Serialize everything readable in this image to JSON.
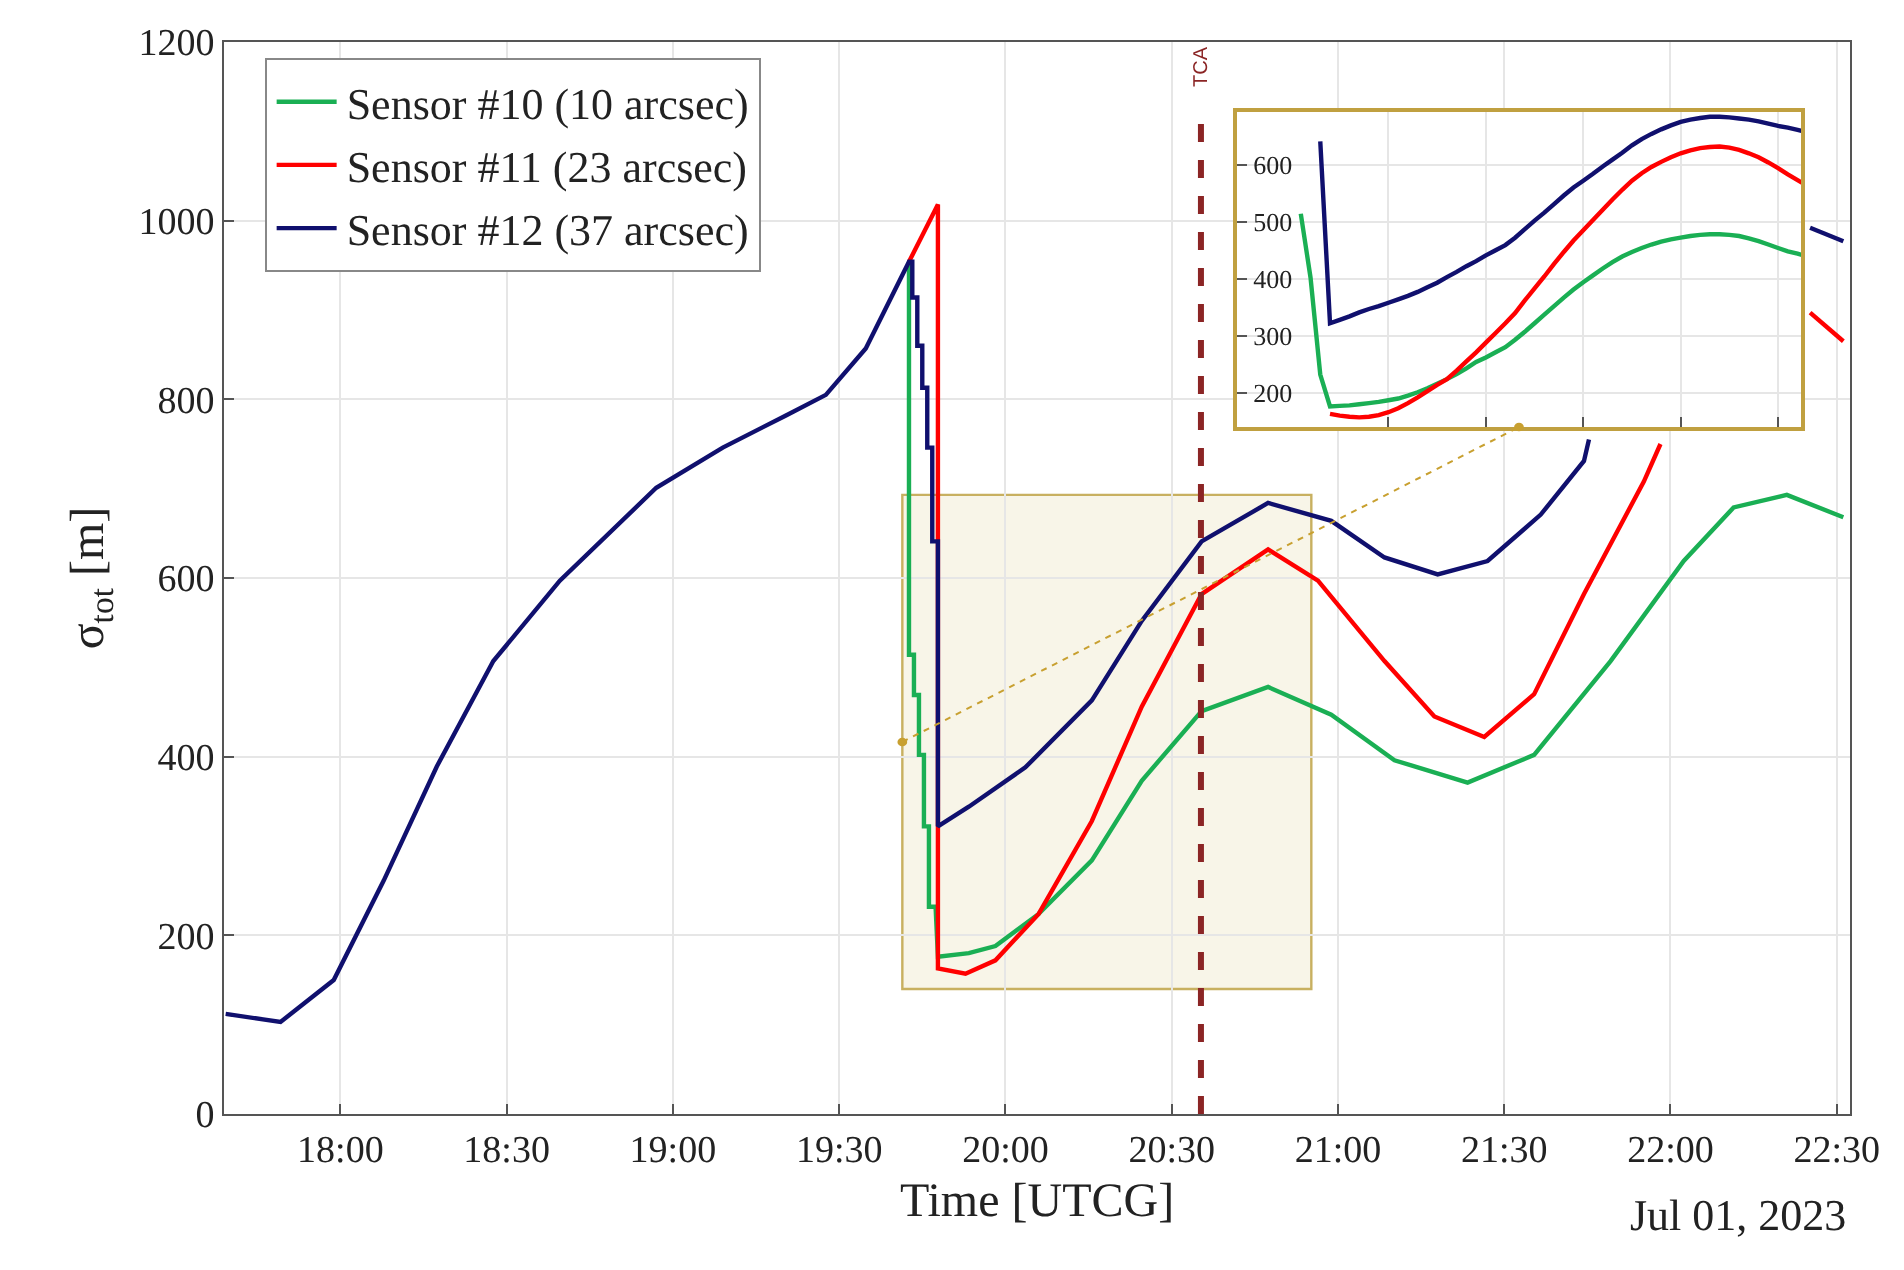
{
  "chart_data": [
    {
      "type": "line",
      "xlabel": "Time [UTCG]",
      "ylabel": "σ$_{tot}$ [m]",
      "xlim": [
        17.65,
        22.54
      ],
      "ylim": [
        0,
        1200
      ],
      "xticks": [
        {
          "value": 18,
          "label": "18:00"
        },
        {
          "value": 18.5,
          "label": "18:30"
        },
        {
          "value": 19,
          "label": "19:00"
        },
        {
          "value": 19.5,
          "label": "19:30"
        },
        {
          "value": 20,
          "label": "20:00"
        },
        {
          "value": 20.5,
          "label": "20:30"
        },
        {
          "value": 21,
          "label": "21:00"
        },
        {
          "value": 21.5,
          "label": "21:30"
        },
        {
          "value": 22,
          "label": "22:00"
        },
        {
          "value": 22.5,
          "label": "22:30"
        }
      ],
      "yticks": [
        0,
        200,
        400,
        600,
        800,
        1000,
        1200
      ],
      "grid": true,
      "legend": "top left",
      "line_style": "solid",
      "annotations": [
        "Jul 01, 2023"
      ],
      "ref_lines": [
        {
          "axis": "x",
          "value": 20.588,
          "label": "TCA",
          "color": "#8b2525",
          "line_style": "dashed"
        }
      ],
      "series": [
        {
          "name": "Sensor #10 (10 arcsec)",
          "color": "#1aaf54",
          "x": [
            19.71,
            19.71,
            19.725,
            19.725,
            19.74,
            19.74,
            19.755,
            19.755,
            19.77,
            19.77,
            19.79,
            19.797,
            19.89,
            19.97,
            20.1,
            20.26,
            20.41,
            20.59,
            20.79,
            20.98,
            21.17,
            21.39,
            21.59,
            21.82,
            22.04,
            22.19,
            22.35,
            22.52
          ],
          "values": [
            954,
            514,
            514,
            469,
            469,
            402,
            402,
            322,
            322,
            232,
            232,
            176,
            180,
            188,
            224,
            284,
            373,
            451,
            478,
            447,
            396,
            371,
            402,
            507,
            619,
            679,
            693,
            668
          ]
        },
        {
          "name": "Sensor #11 (23 arcsec)",
          "color": "#ff0000",
          "x": [
            19.71,
            19.797,
            19.797,
            19.88,
            19.97,
            20.1,
            20.26,
            20.41,
            20.59,
            20.79,
            20.94,
            21.14,
            21.29,
            21.44,
            21.59,
            21.74,
            21.92,
            21.97,
            22.2,
            22.42,
            22.52
          ],
          "values": [
            954,
            1018,
            163,
            157,
            172,
            224,
            328,
            456,
            582,
            632,
            597,
            507,
            445,
            422,
            470,
            582,
            708,
            750,
            null,
            897,
            865
          ]
        },
        {
          "name": "Sensor #12 (37 arcsec)",
          "color": "#10106e",
          "x": [
            17.655,
            17.82,
            17.98,
            18.13,
            18.29,
            18.46,
            18.66,
            18.95,
            19.15,
            19.34,
            19.46,
            19.58,
            19.71,
            19.72,
            19.72,
            19.735,
            19.735,
            19.75,
            19.75,
            19.765,
            19.765,
            19.78,
            19.78,
            19.797,
            19.797,
            19.89,
            20.06,
            20.26,
            20.41,
            20.59,
            20.79,
            20.98,
            21.14,
            21.3,
            21.45,
            21.61,
            21.74,
            21.755,
            22.1,
            22.42,
            22.52
          ],
          "values": [
            112,
            103,
            150,
            261,
            389,
            507,
            597,
            701,
            746,
            782,
            805,
            857,
            954,
            954,
            914,
            914,
            860,
            860,
            813,
            813,
            746,
            746,
            641,
            641,
            322,
            344,
            388,
            463,
            552,
            641,
            684,
            664,
            623,
            604,
            619,
            671,
            731,
            755,
            null,
            992,
            977
          ]
        }
      ]
    },
    {
      "type": "line",
      "ylim": [
        140,
        693
      ],
      "categories": [
        null,
        null,
        null,
        null,
        null,
        null,
        null,
        null,
        null,
        null,
        null,
        null,
        null,
        null,
        null,
        null,
        null,
        null,
        null,
        null,
        null,
        null,
        null,
        null,
        null,
        null,
        null,
        null,
        null,
        null,
        null,
        null,
        null,
        null,
        null,
        null,
        null,
        null,
        null,
        null,
        null,
        null,
        null,
        null,
        null,
        null,
        null,
        null,
        null,
        null,
        null,
        null,
        null,
        null,
        null,
        null,
        null,
        null,
        null
      ],
      "yticks": [
        200,
        300,
        400,
        500,
        600
      ],
      "tick_labels": "y",
      "grid": true,
      "series": [
        {
          "color": "#1aaf54",
          "values": [
            null,
            null,
            null,
            null,
            null,
            null,
            514,
            402,
            232,
            176,
            177,
            178,
            180,
            182,
            184,
            187,
            190,
            195,
            201,
            208,
            216,
            224,
            233,
            243,
            254,
            262,
            271,
            280,
            293,
            307,
            322,
            337,
            352,
            367,
            381,
            394,
            406,
            418,
            429,
            439,
            447,
            454,
            460,
            465,
            469,
            472,
            475,
            477,
            478,
            478,
            477,
            475,
            471,
            466,
            460,
            454,
            448,
            444,
            439
          ]
        },
        {
          "color": "#ff0000",
          "values": [
            null,
            null,
            null,
            null,
            null,
            null,
            null,
            null,
            null,
            163,
            160,
            158,
            157,
            158,
            161,
            166,
            173,
            182,
            192,
            203,
            214,
            224,
            239,
            255,
            271,
            288,
            305,
            322,
            340,
            362,
            383,
            404,
            426,
            447,
            467,
            485,
            503,
            521,
            539,
            556,
            572,
            585,
            596,
            605,
            613,
            620,
            625,
            629,
            631,
            632,
            630,
            626,
            620,
            613,
            604,
            594,
            583,
            573,
            563
          ]
        },
        {
          "color": "#10106e",
          "values": [
            null,
            null,
            null,
            null,
            null,
            null,
            null,
            null,
            641,
            322,
            328,
            334,
            341,
            347,
            352,
            358,
            364,
            370,
            377,
            385,
            393,
            403,
            412,
            422,
            431,
            441,
            450,
            459,
            472,
            487,
            502,
            516,
            531,
            546,
            560,
            572,
            584,
            597,
            609,
            621,
            634,
            645,
            654,
            662,
            669,
            675,
            679,
            682,
            684,
            684,
            683,
            681,
            679,
            676,
            672,
            668,
            665,
            661,
            657
          ]
        }
      ]
    }
  ]
}
